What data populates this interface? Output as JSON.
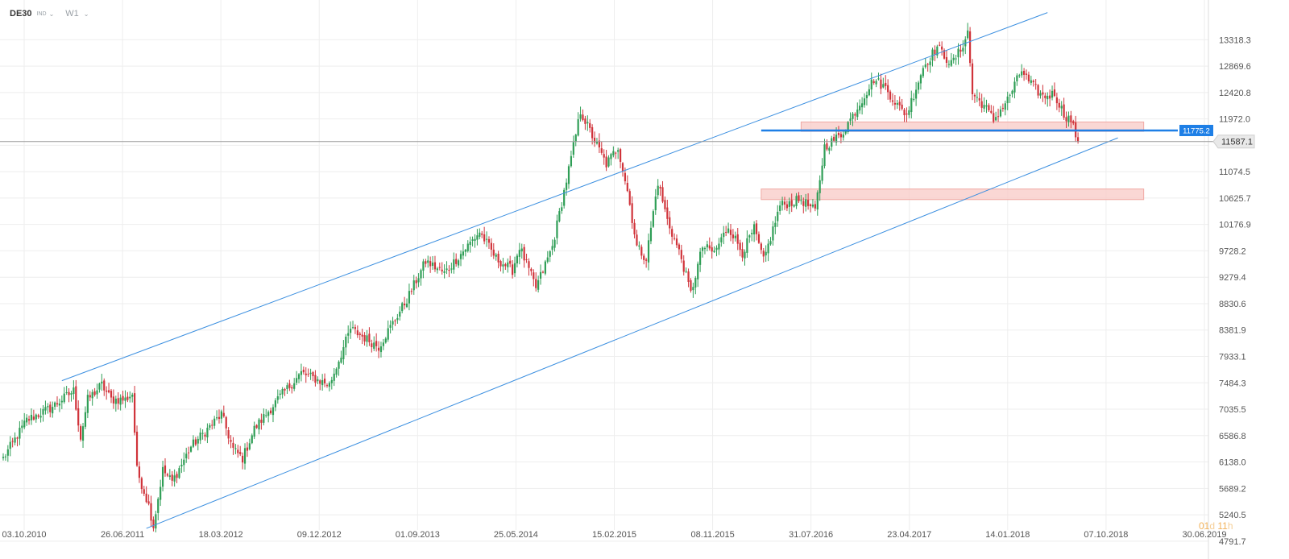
{
  "header": {
    "symbol": "DE30",
    "instrument_class": "IND",
    "timeframe": "W1",
    "chevron_icon": "chevron-down-icon"
  },
  "timer": {
    "days": "01",
    "days_unit": "d",
    "hours": "11",
    "hours_unit": "h"
  },
  "colors": {
    "bull": "#2f9e56",
    "bear": "#d0333a",
    "channel": "#3b8fe0",
    "support_line": "#1e7fe6",
    "zone_fill": "#f8c9c6",
    "zone_stroke": "#f0a9a4",
    "price_line": "#9a9a9a",
    "grid": "#eeeeee",
    "axis_text": "#555555"
  },
  "chart_data": {
    "type": "candlestick",
    "symbol": "DE30",
    "timeframe": "W1",
    "x_tick_labels": [
      "03.10.2010",
      "26.06.2011",
      "18.03.2012",
      "09.12.2012",
      "01.09.2013",
      "25.05.2014",
      "15.02.2015",
      "08.11.2015",
      "31.07.2016",
      "23.04.2017",
      "14.01.2018",
      "07.10.2018",
      "30.06.2019"
    ],
    "y_tick_values": [
      4791.7,
      5240.5,
      5689.2,
      6138.0,
      6586.8,
      7035.5,
      7484.3,
      7933.1,
      8381.9,
      8830.6,
      9279.4,
      9728.2,
      10176.9,
      10625.7,
      11074.5,
      11523.2,
      11972.0,
      12420.8,
      12869.6,
      13318.3
    ],
    "y_tick_labels": [
      "4791.7",
      "5240.5",
      "5689.2",
      "6138.0",
      "6586.8",
      "7035.5",
      "7484.3",
      "7933.1",
      "8381.9",
      "8830.6",
      "9279.4",
      "9728.2",
      "10176.9",
      "10625.7",
      "11074.5",
      "",
      "11972.0",
      "12420.8",
      "12869.6",
      "13318.3"
    ],
    "ylim": [
      4680,
      13720
    ],
    "x_range_index": [
      0,
      505
    ],
    "current_price": 11587.1,
    "current_price_label": "11587.1",
    "support_level": 11775.2,
    "support_level_label": "11775.2",
    "key_prices": [
      {
        "t": 0,
        "v": 6200
      },
      {
        "t": 10,
        "v": 6850
      },
      {
        "t": 20,
        "v": 7050
      },
      {
        "t": 30,
        "v": 7350
      },
      {
        "t": 33,
        "v": 6550
      },
      {
        "t": 36,
        "v": 7200
      },
      {
        "t": 42,
        "v": 7450
      },
      {
        "t": 46,
        "v": 7200
      },
      {
        "t": 52,
        "v": 7200
      },
      {
        "t": 55,
        "v": 7300
      },
      {
        "t": 57,
        "v": 6000
      },
      {
        "t": 62,
        "v": 5400
      },
      {
        "t": 64,
        "v": 5050
      },
      {
        "t": 68,
        "v": 6000
      },
      {
        "t": 72,
        "v": 5800
      },
      {
        "t": 80,
        "v": 6400
      },
      {
        "t": 93,
        "v": 6950
      },
      {
        "t": 98,
        "v": 6350
      },
      {
        "t": 102,
        "v": 6200
      },
      {
        "t": 107,
        "v": 6700
      },
      {
        "t": 118,
        "v": 7250
      },
      {
        "t": 127,
        "v": 7650
      },
      {
        "t": 139,
        "v": 7450
      },
      {
        "t": 148,
        "v": 8400
      },
      {
        "t": 160,
        "v": 8100
      },
      {
        "t": 172,
        "v": 8900
      },
      {
        "t": 180,
        "v": 9550
      },
      {
        "t": 188,
        "v": 9350
      },
      {
        "t": 203,
        "v": 10050
      },
      {
        "t": 210,
        "v": 9600
      },
      {
        "t": 217,
        "v": 9400
      },
      {
        "t": 220,
        "v": 9800
      },
      {
        "t": 227,
        "v": 9100
      },
      {
        "t": 234,
        "v": 9800
      },
      {
        "t": 242,
        "v": 11300
      },
      {
        "t": 246,
        "v": 12100
      },
      {
        "t": 252,
        "v": 11600
      },
      {
        "t": 257,
        "v": 11200
      },
      {
        "t": 262,
        "v": 11500
      },
      {
        "t": 266,
        "v": 10750
      },
      {
        "t": 270,
        "v": 9800
      },
      {
        "t": 274,
        "v": 9600
      },
      {
        "t": 279,
        "v": 10900
      },
      {
        "t": 283,
        "v": 10250
      },
      {
        "t": 289,
        "v": 9600
      },
      {
        "t": 293,
        "v": 9000
      },
      {
        "t": 298,
        "v": 9800
      },
      {
        "t": 303,
        "v": 9700
      },
      {
        "t": 309,
        "v": 10150
      },
      {
        "t": 315,
        "v": 9700
      },
      {
        "t": 320,
        "v": 10100
      },
      {
        "t": 324,
        "v": 9550
      },
      {
        "t": 331,
        "v": 10500
      },
      {
        "t": 340,
        "v": 10600
      },
      {
        "t": 346,
        "v": 10400
      },
      {
        "t": 350,
        "v": 11500
      },
      {
        "t": 357,
        "v": 11700
      },
      {
        "t": 363,
        "v": 12100
      },
      {
        "t": 371,
        "v": 12650
      },
      {
        "t": 376,
        "v": 12500
      },
      {
        "t": 382,
        "v": 12150
      },
      {
        "t": 385,
        "v": 12050
      },
      {
        "t": 392,
        "v": 12850
      },
      {
        "t": 398,
        "v": 13200
      },
      {
        "t": 404,
        "v": 12900
      },
      {
        "t": 408,
        "v": 13150
      },
      {
        "t": 411,
        "v": 13450
      },
      {
        "t": 413,
        "v": 12400
      },
      {
        "t": 418,
        "v": 12200
      },
      {
        "t": 422,
        "v": 11950
      },
      {
        "t": 428,
        "v": 12300
      },
      {
        "t": 434,
        "v": 12800
      },
      {
        "t": 437,
        "v": 12600
      },
      {
        "t": 443,
        "v": 12350
      },
      {
        "t": 448,
        "v": 12400
      },
      {
        "t": 452,
        "v": 12050
      },
      {
        "t": 455,
        "v": 11950
      },
      {
        "t": 458,
        "v": 11587
      }
    ],
    "channel_upper": {
      "t1": 25,
      "v1": 7520,
      "t2": 445,
      "v2": 13780
    },
    "channel_lower": {
      "t1": 61,
      "v1": 5010,
      "t2": 475,
      "v2": 11650
    },
    "support_line_range": {
      "t1": 323,
      "t2": 486
    },
    "resistance_zones": [
      {
        "t1": 340,
        "t2": 486,
        "v1": 11760,
        "v2": 11920
      },
      {
        "t1": 323,
        "t2": 486,
        "v1": 10600,
        "v2": 10780
      }
    ],
    "grid": true
  }
}
